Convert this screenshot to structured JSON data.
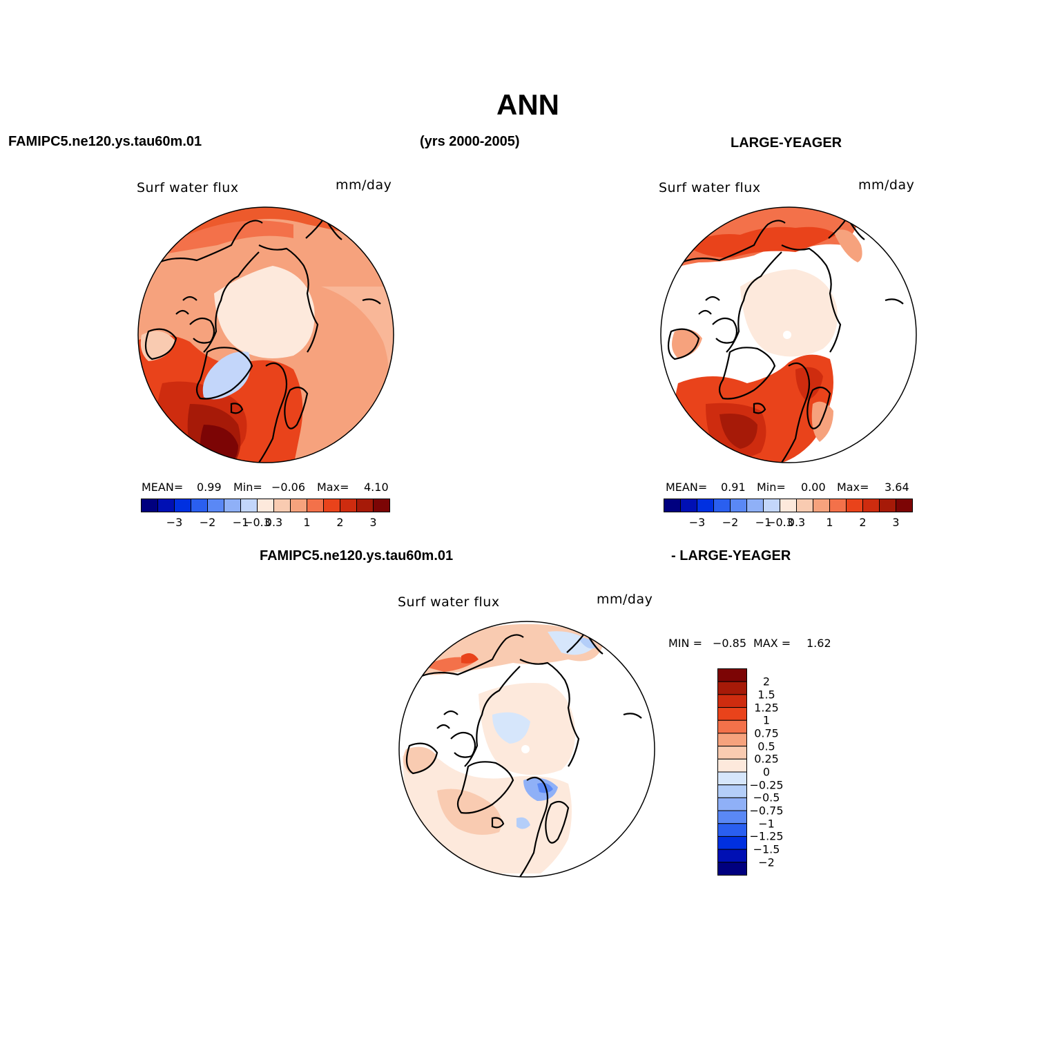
{
  "page": {
    "main_title": "ANN",
    "case_label": "FAMIPC5.ne120.ys.tau60m.01",
    "years_label": "(yrs 2000-2005)",
    "obs_label": "LARGE-YEAGER",
    "diff_case_label": "FAMIPC5.ne120.ys.tau60m.01",
    "diff_obs_label": "- LARGE-YEAGER"
  },
  "colors": {
    "scale": [
      "#00007f",
      "#0010b4",
      "#0030e0",
      "#2a5ff0",
      "#5a88f5",
      "#8fb0f7",
      "#c3d6fa",
      "#fde9dc",
      "#f9cbb1",
      "#f6a27d",
      "#f3714a",
      "#e9431b",
      "#ce2c0f",
      "#a61a08",
      "#7c0505"
    ],
    "diff_scale": [
      "#00007f",
      "#0010b4",
      "#0030e0",
      "#2a5ff0",
      "#5a88f5",
      "#8fb0f7",
      "#b4cef9",
      "#d6e6fb",
      "#fde9dc",
      "#f9cbb1",
      "#f6a27d",
      "#f3714a",
      "#e9431b",
      "#ce2c0f",
      "#a61a08",
      "#7c0505"
    ]
  },
  "panels": [
    {
      "id": "model",
      "variable": "Surf water flux",
      "units": "mm/day",
      "stats": {
        "mean_label": "MEAN=",
        "mean": "0.99",
        "min_label": "Min=",
        "min": "−0.06",
        "max_label": "Max=",
        "max": "4.10"
      },
      "colorbar_ticks": [
        "−3",
        "−2",
        "−1",
        "−0.3",
        "0.3",
        "1",
        "2",
        "3"
      ]
    },
    {
      "id": "obs",
      "variable": "Surf water flux",
      "units": "mm/day",
      "stats": {
        "mean_label": "MEAN=",
        "mean": "0.91",
        "min_label": "Min=",
        "min": "0.00",
        "max_label": "Max=",
        "max": "3.64"
      },
      "colorbar_ticks": [
        "−3",
        "−2",
        "−1",
        "−0.3",
        "0.3",
        "1",
        "2",
        "3"
      ]
    },
    {
      "id": "diff",
      "variable": "Surf water flux",
      "units": "mm/day",
      "stats": {
        "min_label": "MIN =",
        "min": "−0.85",
        "max_label": "MAX =",
        "max": "1.62"
      },
      "colorbar_ticks": [
        "2",
        "1.5",
        "1.25",
        "1",
        "0.75",
        "0.5",
        "0.25",
        "0",
        "−0.25",
        "−0.5",
        "−0.75",
        "−1",
        "−1.25",
        "−1.5",
        "−2"
      ]
    }
  ]
}
